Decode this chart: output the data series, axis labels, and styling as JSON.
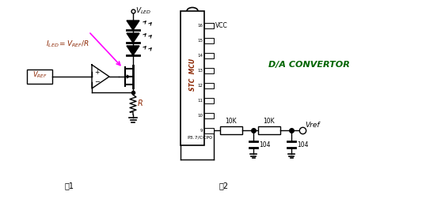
{
  "bg_color": "#ffffff",
  "fig1_label": "图1",
  "fig2_label": "图2",
  "da_convertor": "D/A CONVERTOR",
  "vcc_label": "VCC",
  "p37_label": "P3.7/CCP0",
  "stc_mcu": "STC MCU",
  "res1_label": "10K",
  "res2_label": "10K",
  "cap1_label": "104",
  "cap2_label": "104",
  "vref_out": "Vref",
  "pink": "#FF00FF",
  "brown": "#8B2500",
  "dark_green": "#006400",
  "black": "#000000"
}
